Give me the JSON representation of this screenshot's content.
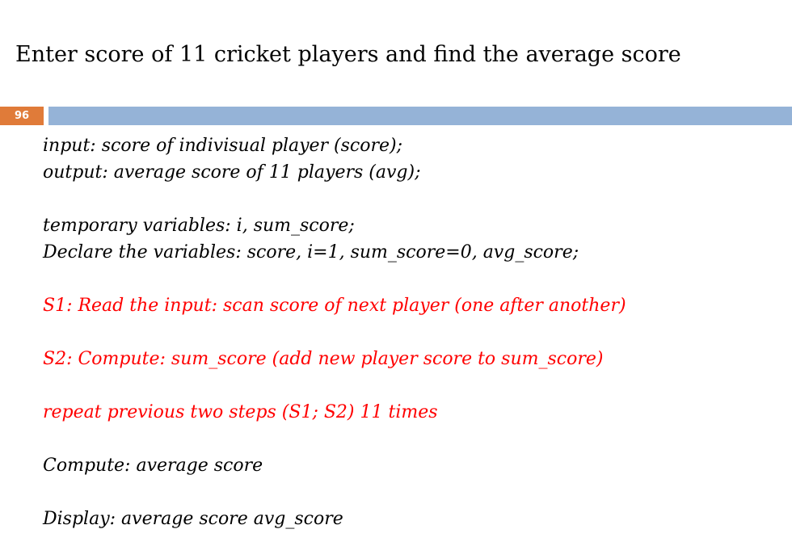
{
  "slide": {
    "title": "Enter score of 11 cricket players and find the average score",
    "page_number": "96"
  },
  "colors": {
    "accent_orange": "#e07b39",
    "header_bar_blue": "#95b3d7",
    "highlight_red": "#ff0000"
  },
  "body": {
    "input_line": "input: score of indivisual player (score);",
    "output_line": "output: average score of 11 players (avg);",
    "temp_vars_line": "temporary variables: i, sum_score;",
    "declare_line": "Declare the variables: score, i=1, sum_score=0, avg_score;",
    "step_s1": "S1: Read the input: scan score of next player (one after another)",
    "step_s2": "S2: Compute: sum_score (add new player score to sum_score)",
    "repeat_line": "repeat previous two steps  (S1; S2) 11 times",
    "compute_line": "Compute: average score",
    "display_line": "Display: average score avg_score"
  }
}
